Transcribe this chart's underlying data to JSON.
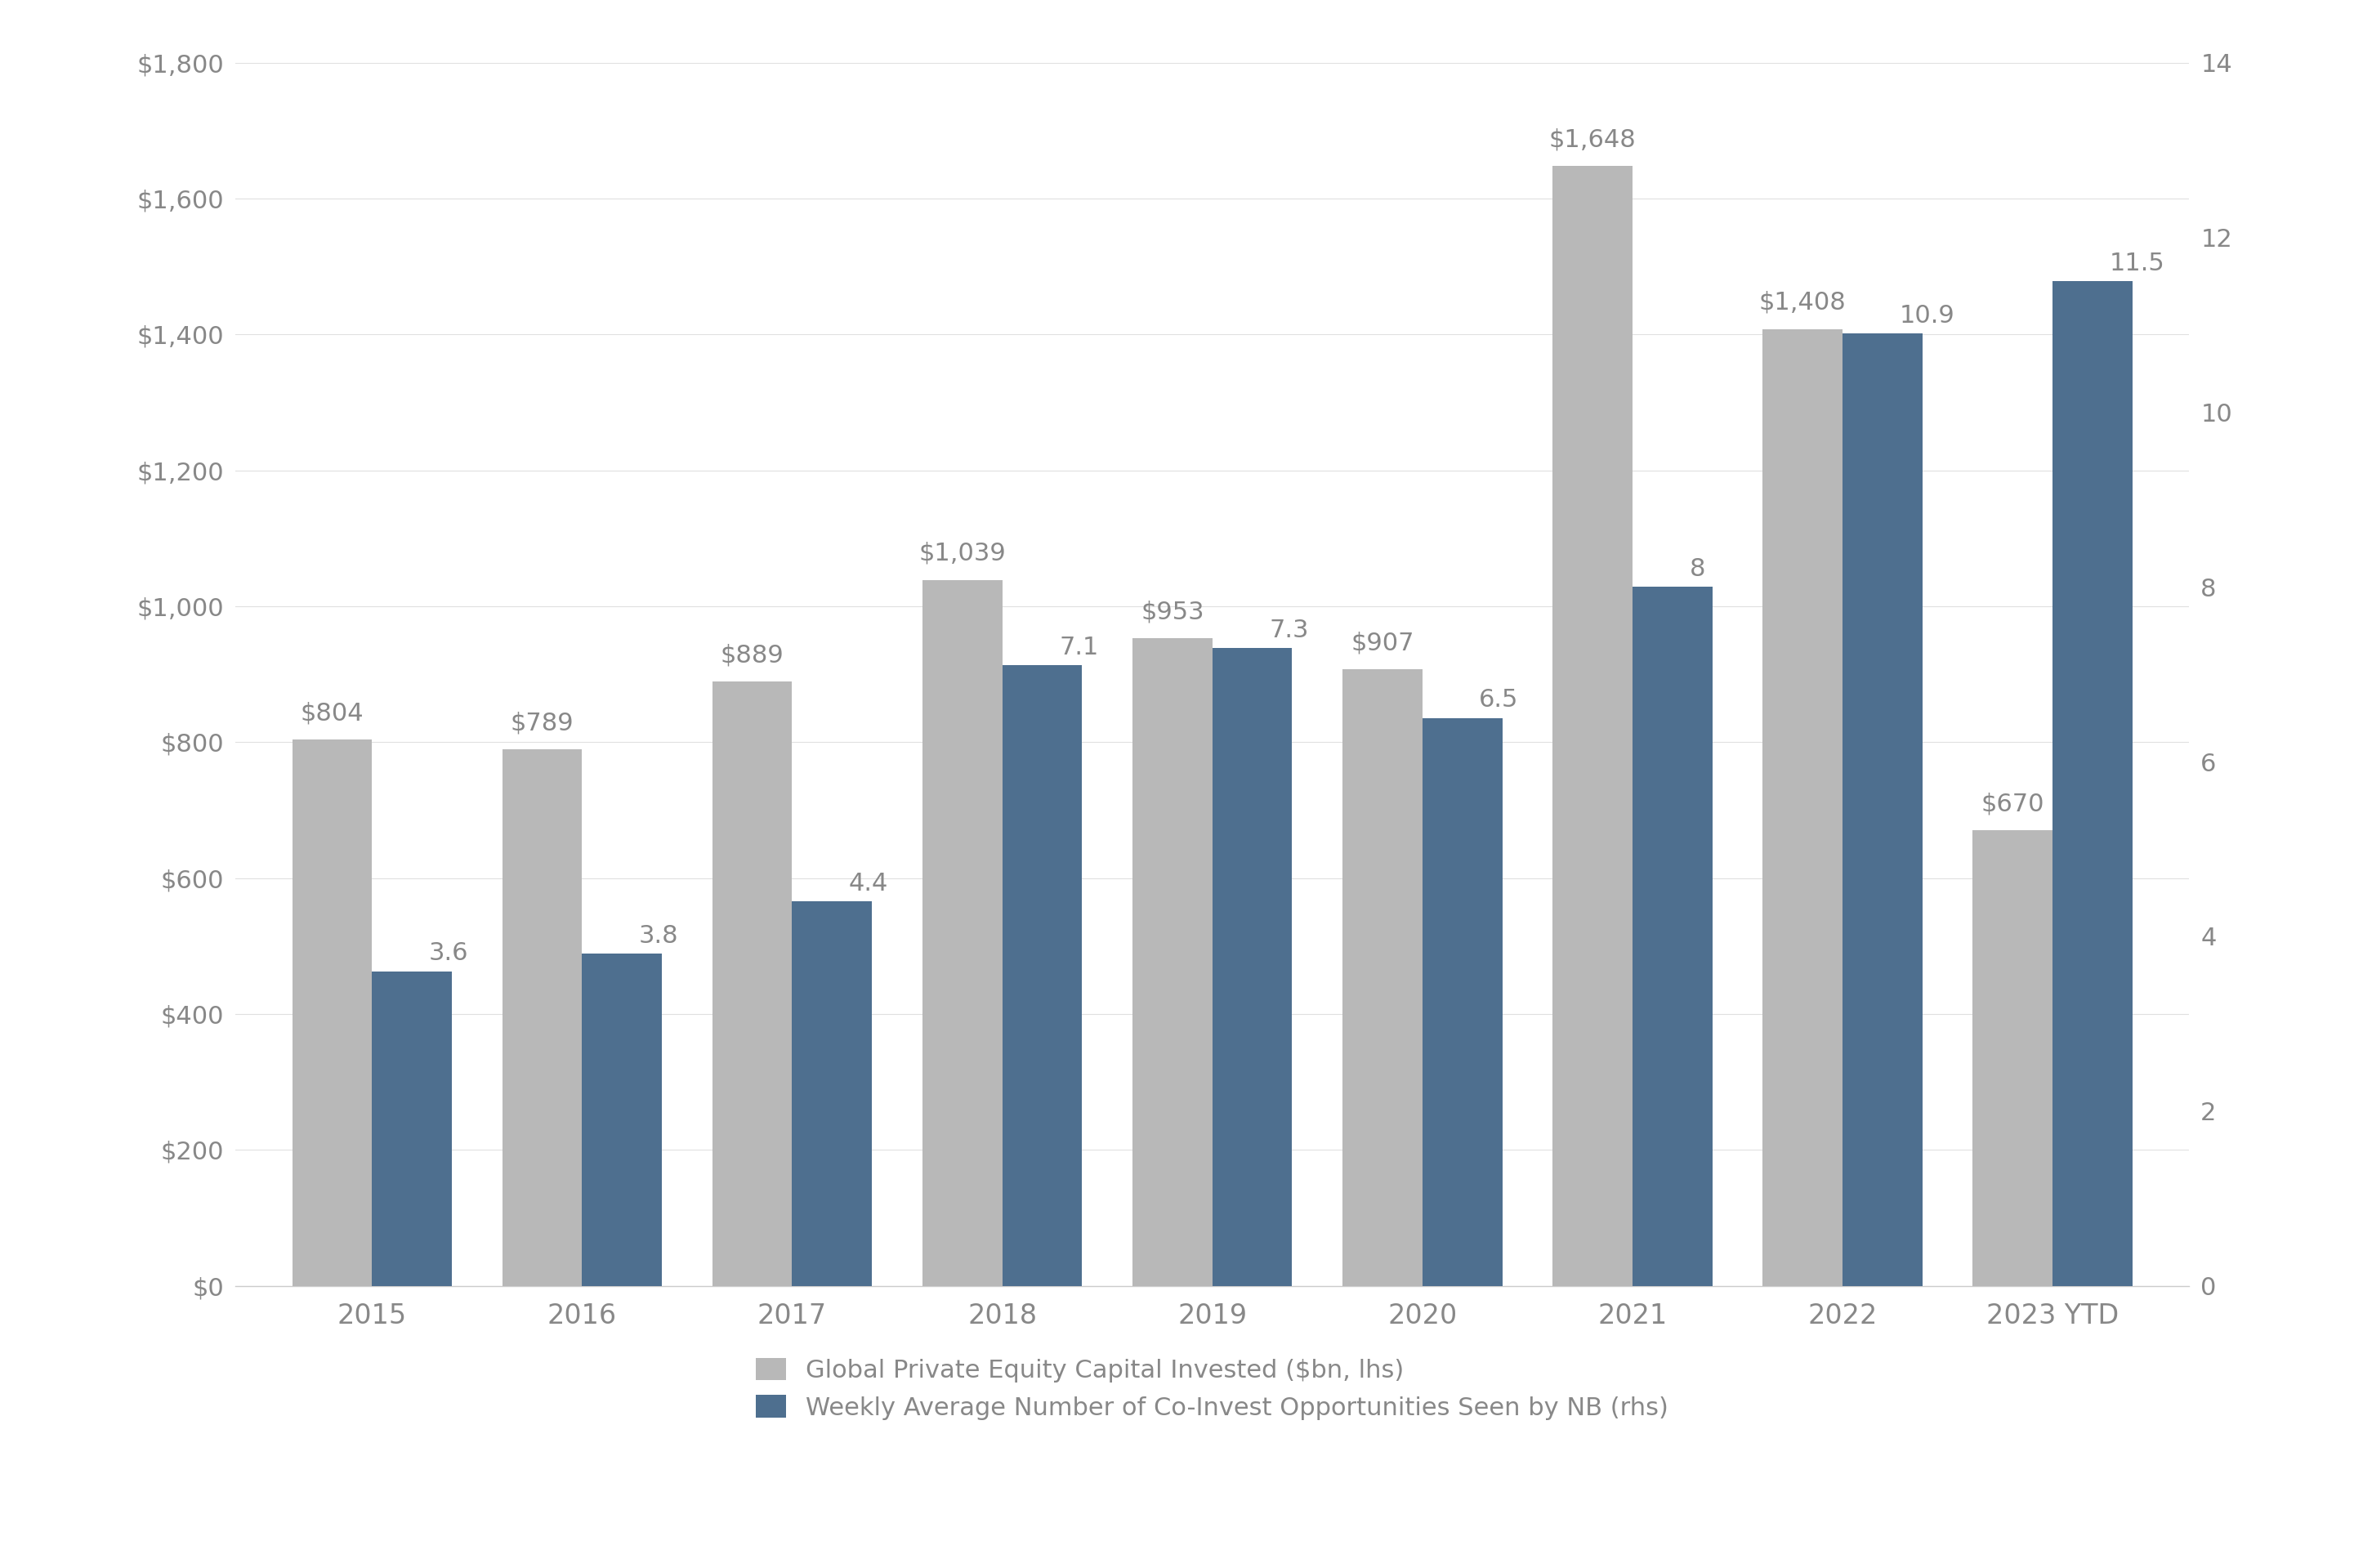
{
  "categories": [
    "2015",
    "2016",
    "2017",
    "2018",
    "2019",
    "2020",
    "2021",
    "2022",
    "2023 YTD"
  ],
  "capital_invested": [
    804,
    789,
    889,
    1039,
    953,
    907,
    1648,
    1408,
    670
  ],
  "co_invest_opportunities": [
    3.6,
    3.8,
    4.4,
    7.1,
    7.3,
    6.5,
    8.0,
    10.9,
    11.5
  ],
  "capital_labels": [
    "$804",
    "$789",
    "$889",
    "$1,039",
    "$953",
    "$907",
    "$1,648",
    "$1,408",
    "$670"
  ],
  "co_invest_labels": [
    "3.6",
    "3.8",
    "4.4",
    "7.1",
    "7.3",
    "6.5",
    "8",
    "10.9",
    "11.5"
  ],
  "bar_color_gray": "#b8b8b8",
  "bar_color_blue": "#4e6f8f",
  "background_color": "#ffffff",
  "left_ylim": [
    0,
    1800
  ],
  "right_ylim": [
    0,
    14
  ],
  "left_yticks": [
    0,
    200,
    400,
    600,
    800,
    1000,
    1200,
    1400,
    1600,
    1800
  ],
  "left_yticklabels": [
    "$0",
    "$200",
    "$400",
    "$600",
    "$800",
    "$1,000",
    "$1,200",
    "$1,400",
    "$1,600",
    "$1,800"
  ],
  "right_yticks": [
    0,
    2,
    4,
    6,
    8,
    10,
    12,
    14
  ],
  "right_yticklabels": [
    "0",
    "2",
    "4",
    "6",
    "8",
    "10",
    "12",
    "14"
  ],
  "legend_labels": [
    "Global Private Equity Capital Invested ($bn, lhs)",
    "Weekly Average Number of Co-Invest Opportunities Seen by NB (rhs)"
  ],
  "bar_width": 0.38,
  "tick_color": "#888888",
  "font_size_ticks": 22,
  "font_size_xticks": 24,
  "font_size_annotations": 22,
  "font_size_legend": 22
}
